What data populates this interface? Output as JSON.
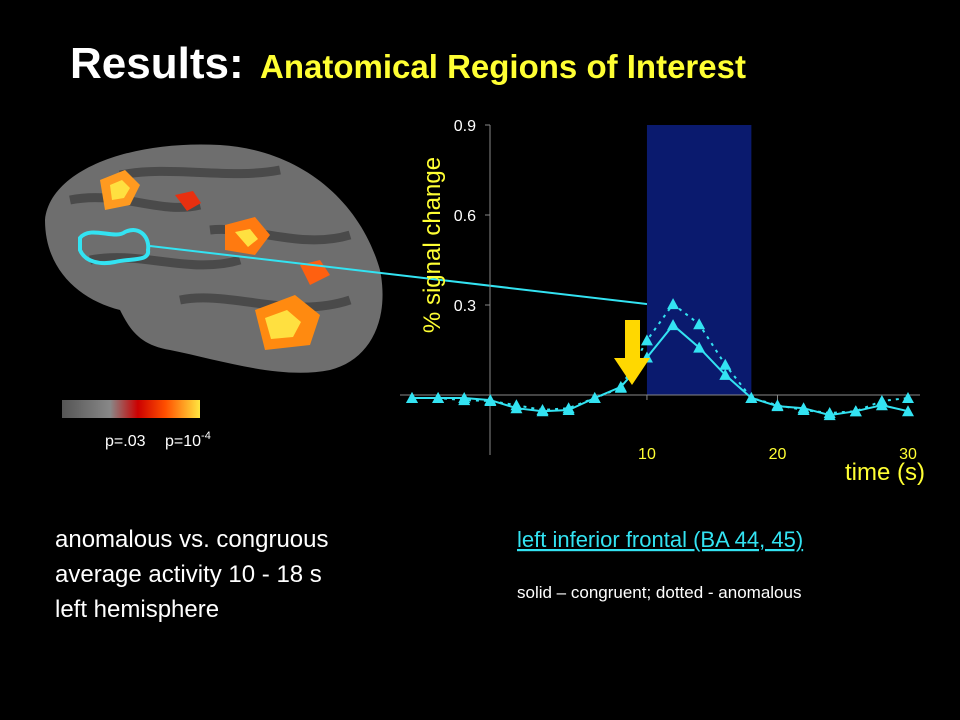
{
  "title": {
    "lead": "Results:",
    "main": "Anatomical Regions of Interest"
  },
  "colorbar": {
    "low_label": "p=.03",
    "high_label_base": "p=10",
    "high_label_exp": "-4"
  },
  "notes": [
    "anomalous vs. congruous",
    "average activity 10 - 18 s",
    "left hemisphere"
  ],
  "region_link": "left inferior frontal (BA 44, 45)",
  "caption": "solid – congruent; dotted - anomalous",
  "chart_data": {
    "type": "line",
    "y_label": "% signal change",
    "x_label": "time (s)",
    "x": [
      -8,
      -6,
      -4,
      -2,
      0,
      2,
      4,
      6,
      8,
      10,
      12,
      14,
      16,
      18,
      20,
      22,
      24,
      26,
      28,
      30
    ],
    "series": [
      {
        "color": "#33e3f2",
        "dash": "solid",
        "values": [
          -0.01,
          -0.01,
          -0.01,
          -0.017,
          -0.044,
          -0.054,
          -0.05,
          -0.01,
          0.027,
          0.125,
          0.233,
          0.158,
          0.067,
          -0.01,
          -0.037,
          -0.044,
          -0.067,
          -0.054,
          -0.034,
          -0.054
        ]
      },
      {
        "color": "#33e3f2",
        "dash": "dotted",
        "values": [
          -0.01,
          -0.01,
          -0.017,
          -0.02,
          -0.034,
          -0.05,
          -0.044,
          -0.01,
          0.024,
          0.182,
          0.303,
          0.236,
          0.101,
          -0.01,
          -0.034,
          -0.05,
          -0.06,
          -0.054,
          -0.02,
          -0.01
        ]
      }
    ],
    "highlight": [
      10,
      18
    ],
    "highlight_color": "#0a1a6e",
    "xlim": [
      -8,
      30
    ],
    "ylim": [
      -0.2,
      0.9
    ],
    "xticks": [
      10,
      20,
      30
    ],
    "yticks": [
      0.3,
      0.6,
      0.9
    ]
  }
}
